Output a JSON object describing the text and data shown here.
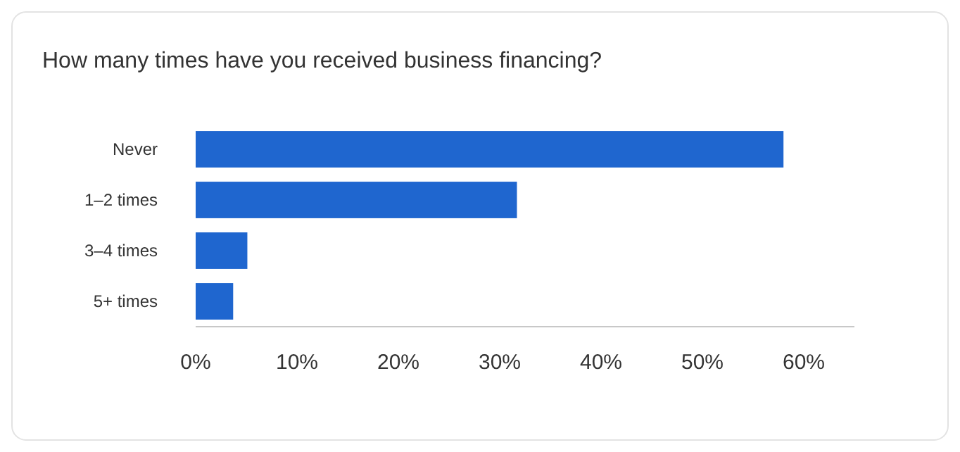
{
  "chart_data": {
    "type": "bar",
    "orientation": "horizontal",
    "title": "How many times have you received business financing?",
    "categories": [
      "Never",
      "1–2 times",
      "3–4 times",
      "5+ times"
    ],
    "values": [
      58,
      31.7,
      5.1,
      3.7
    ],
    "color": "#1f66cf",
    "xlim": [
      0,
      65
    ],
    "xticks": [
      {
        "value": 0,
        "label": "0%"
      },
      {
        "value": 10,
        "label": "10%"
      },
      {
        "value": 20,
        "label": "20%"
      },
      {
        "value": 30,
        "label": "30%"
      },
      {
        "value": 40,
        "label": "40%"
      },
      {
        "value": 50,
        "label": "50%"
      },
      {
        "value": 60,
        "label": "60%"
      }
    ],
    "grid": false
  }
}
